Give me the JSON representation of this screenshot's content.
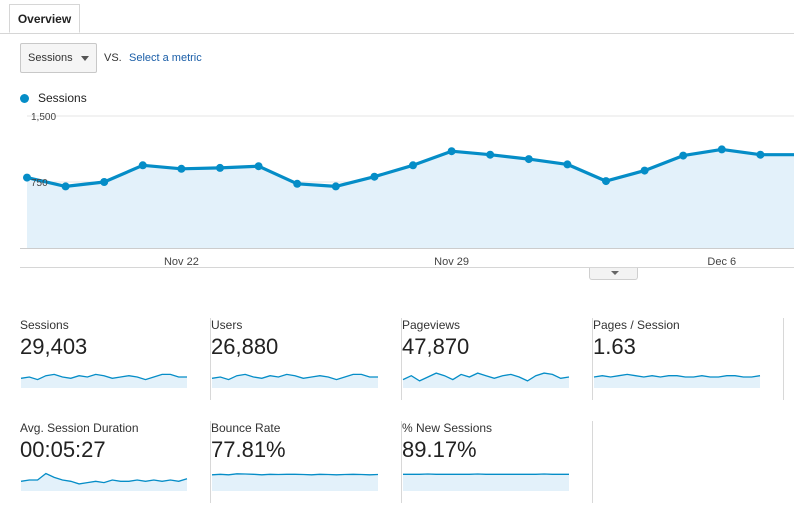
{
  "tabs": [
    {
      "label": "Overview"
    }
  ],
  "controls": {
    "metric_select": "Sessions",
    "vs_label": "VS.",
    "select_metric_link": "Select a metric"
  },
  "legend": {
    "label": "Sessions",
    "color": "#058dc7"
  },
  "chart_data": {
    "type": "area",
    "series": [
      {
        "name": "Sessions",
        "values": [
          800,
          700,
          750,
          940,
          900,
          910,
          930,
          730,
          700,
          810,
          940,
          1100,
          1060,
          1010,
          950,
          760,
          880,
          1050,
          1120,
          1060,
          1060
        ]
      }
    ],
    "x_tick_labels": [
      {
        "label": "Nov 22",
        "index": 4
      },
      {
        "label": "Nov 29",
        "index": 11
      },
      {
        "label": "Dec 6",
        "index": 18
      }
    ],
    "yticks": [
      {
        "value": 1500,
        "label": "1,500"
      },
      {
        "value": 750,
        "label": "750"
      }
    ],
    "ylim": [
      0,
      1500
    ],
    "grid": true,
    "color": "#058dc7",
    "fill": "#e3f1fa"
  },
  "scorecards": [
    {
      "name": "Sessions",
      "value": "29,403",
      "spark": [
        0.45,
        0.5,
        0.4,
        0.55,
        0.6,
        0.5,
        0.45,
        0.55,
        0.5,
        0.6,
        0.55,
        0.45,
        0.5,
        0.55,
        0.5,
        0.4,
        0.5,
        0.6,
        0.6,
        0.5,
        0.5
      ]
    },
    {
      "name": "Users",
      "value": "26,880",
      "spark": [
        0.45,
        0.5,
        0.4,
        0.55,
        0.6,
        0.5,
        0.45,
        0.55,
        0.5,
        0.6,
        0.55,
        0.45,
        0.5,
        0.55,
        0.5,
        0.4,
        0.5,
        0.6,
        0.6,
        0.5,
        0.5
      ]
    },
    {
      "name": "Pageviews",
      "value": "47,870",
      "spark": [
        0.4,
        0.55,
        0.35,
        0.5,
        0.65,
        0.55,
        0.4,
        0.6,
        0.5,
        0.65,
        0.55,
        0.45,
        0.55,
        0.6,
        0.5,
        0.35,
        0.55,
        0.65,
        0.6,
        0.45,
        0.5
      ]
    },
    {
      "name": "Pages / Session",
      "value": "1.63",
      "spark": [
        0.5,
        0.55,
        0.5,
        0.55,
        0.6,
        0.55,
        0.5,
        0.55,
        0.5,
        0.55,
        0.55,
        0.5,
        0.5,
        0.55,
        0.5,
        0.5,
        0.55,
        0.55,
        0.5,
        0.5,
        0.55
      ]
    },
    {
      "name": "Avg. Session Duration",
      "value": "00:05:27",
      "spark": [
        0.45,
        0.5,
        0.5,
        0.75,
        0.6,
        0.5,
        0.45,
        0.35,
        0.4,
        0.45,
        0.4,
        0.5,
        0.45,
        0.45,
        0.5,
        0.45,
        0.5,
        0.45,
        0.5,
        0.45,
        0.55
      ]
    },
    {
      "name": "Bounce Rate",
      "value": "77.81%",
      "spark": [
        0.7,
        0.72,
        0.7,
        0.74,
        0.73,
        0.72,
        0.7,
        0.72,
        0.71,
        0.72,
        0.72,
        0.71,
        0.7,
        0.72,
        0.71,
        0.7,
        0.71,
        0.72,
        0.71,
        0.7,
        0.71
      ]
    },
    {
      "name": "% New Sessions",
      "value": "89.17%",
      "spark": [
        0.72,
        0.72,
        0.72,
        0.73,
        0.72,
        0.72,
        0.72,
        0.72,
        0.72,
        0.73,
        0.72,
        0.72,
        0.72,
        0.72,
        0.72,
        0.72,
        0.72,
        0.73,
        0.72,
        0.72,
        0.72
      ]
    }
  ]
}
